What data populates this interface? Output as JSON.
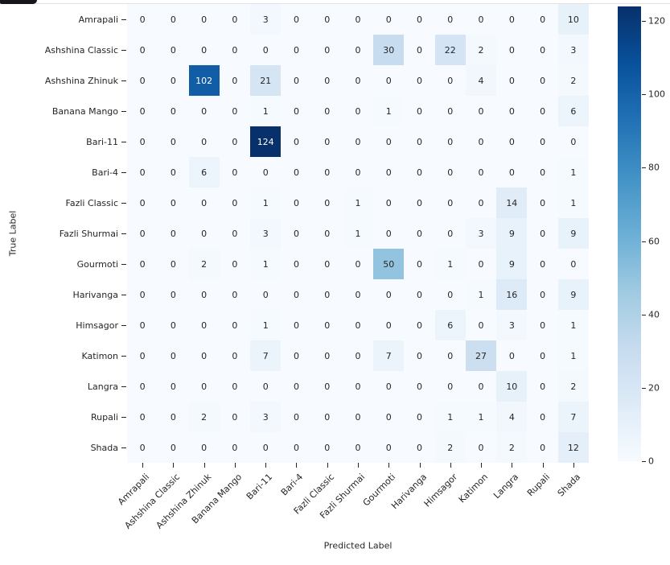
{
  "chart_data": {
    "type": "heatmap",
    "title": "",
    "xlabel": "Predicted Label",
    "ylabel": "True Label",
    "categories": [
      "Amrapali",
      "Ashshina Classic",
      "Ashshina Zhinuk",
      "Banana Mango",
      "Bari-11",
      "Bari-4",
      "Fazli Classic",
      "Fazli Shurmai",
      "Gourmoti",
      "Harivanga",
      "Himsagor",
      "Katimon",
      "Langra",
      "Rupali",
      "Shada"
    ],
    "rows": [
      {
        "label": "Amrapali",
        "values": [
          0,
          0,
          0,
          0,
          3,
          0,
          0,
          0,
          0,
          0,
          0,
          0,
          0,
          0,
          10
        ]
      },
      {
        "label": "Ashshina Classic",
        "values": [
          0,
          0,
          0,
          0,
          0,
          0,
          0,
          0,
          30,
          0,
          22,
          2,
          0,
          0,
          3
        ]
      },
      {
        "label": "Ashshina Zhinuk",
        "values": [
          0,
          0,
          102,
          0,
          21,
          0,
          0,
          0,
          0,
          0,
          0,
          4,
          0,
          0,
          2
        ]
      },
      {
        "label": "Banana Mango",
        "values": [
          0,
          0,
          0,
          0,
          1,
          0,
          0,
          0,
          1,
          0,
          0,
          0,
          0,
          0,
          6
        ]
      },
      {
        "label": "Bari-11",
        "values": [
          0,
          0,
          0,
          0,
          124,
          0,
          0,
          0,
          0,
          0,
          0,
          0,
          0,
          0,
          0
        ]
      },
      {
        "label": "Bari-4",
        "values": [
          0,
          0,
          6,
          0,
          0,
          0,
          0,
          0,
          0,
          0,
          0,
          0,
          0,
          0,
          1
        ]
      },
      {
        "label": "Fazli Classic",
        "values": [
          0,
          0,
          0,
          0,
          1,
          0,
          0,
          1,
          0,
          0,
          0,
          0,
          14,
          0,
          1
        ]
      },
      {
        "label": "Fazli Shurmai",
        "values": [
          0,
          0,
          0,
          0,
          3,
          0,
          0,
          1,
          0,
          0,
          0,
          3,
          9,
          0,
          9
        ]
      },
      {
        "label": "Gourmoti",
        "values": [
          0,
          0,
          2,
          0,
          1,
          0,
          0,
          0,
          50,
          0,
          1,
          0,
          9,
          0,
          0
        ]
      },
      {
        "label": "Harivanga",
        "values": [
          0,
          0,
          0,
          0,
          0,
          0,
          0,
          0,
          0,
          0,
          0,
          1,
          16,
          0,
          9
        ]
      },
      {
        "label": "Himsagor",
        "values": [
          0,
          0,
          0,
          0,
          1,
          0,
          0,
          0,
          0,
          0,
          6,
          0,
          3,
          0,
          1
        ]
      },
      {
        "label": "Katimon",
        "values": [
          0,
          0,
          0,
          0,
          7,
          0,
          0,
          0,
          7,
          0,
          0,
          27,
          0,
          0,
          1
        ]
      },
      {
        "label": "Langra",
        "values": [
          0,
          0,
          0,
          0,
          0,
          0,
          0,
          0,
          0,
          0,
          0,
          0,
          10,
          0,
          2
        ]
      },
      {
        "label": "Rupali",
        "values": [
          0,
          0,
          2,
          0,
          3,
          0,
          0,
          0,
          0,
          0,
          1,
          1,
          4,
          0,
          7
        ]
      },
      {
        "label": "Shada",
        "values": [
          0,
          0,
          0,
          0,
          0,
          0,
          0,
          0,
          0,
          0,
          2,
          0,
          2,
          0,
          12
        ]
      }
    ],
    "vmin": 0,
    "vmax": 124,
    "colormap": "Blues",
    "colormap_anchors": [
      [
        0,
        "#f7fbff"
      ],
      [
        0.125,
        "#deebf7"
      ],
      [
        0.25,
        "#c6dbef"
      ],
      [
        0.375,
        "#9ecae1"
      ],
      [
        0.5,
        "#6baed6"
      ],
      [
        0.625,
        "#4292c6"
      ],
      [
        0.75,
        "#2171b5"
      ],
      [
        0.875,
        "#08519c"
      ],
      [
        1,
        "#08306b"
      ]
    ],
    "colorbar_ticks": [
      0,
      20,
      40,
      60,
      80,
      100,
      120
    ],
    "legend_position": "right-colorbar",
    "grid": false,
    "annotation_text_dark": "#262626",
    "annotation_text_light": "#ffffff"
  },
  "decorations": {
    "top_bar_color": "#17171b",
    "top_line_color": "#dfe2e5"
  }
}
